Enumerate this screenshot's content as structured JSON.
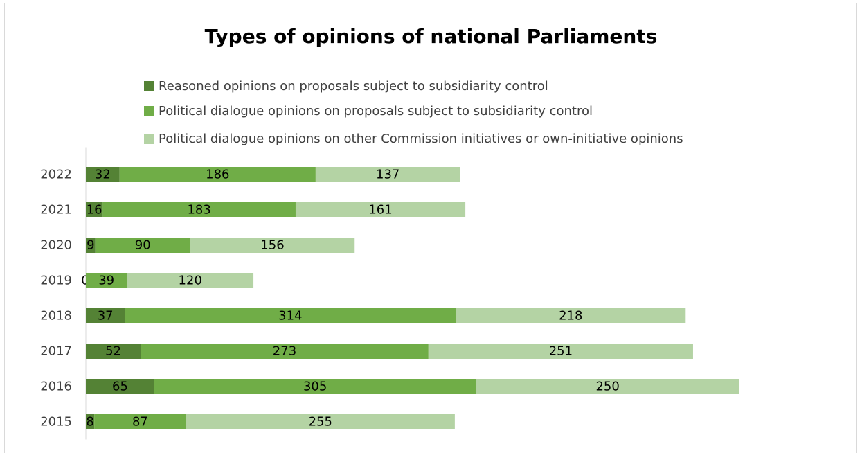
{
  "chart_data": {
    "type": "bar",
    "orientation": "horizontal",
    "stacked": true,
    "title": "Types of opinions of national Parliaments",
    "categories": [
      "2022",
      "2021",
      "2020",
      "2019",
      "2018",
      "2017",
      "2016",
      "2015"
    ],
    "series": [
      {
        "name": "Reasoned opinions on proposals subject to subsidiarity control",
        "color": "#548235",
        "values": [
          32,
          16,
          9,
          0,
          37,
          52,
          65,
          8
        ]
      },
      {
        "name": "Political dialogue opinions on proposals subject to subsidiarity control",
        "color": "#70ad47",
        "values": [
          186,
          183,
          90,
          39,
          314,
          273,
          305,
          87
        ]
      },
      {
        "name": "Political dialogue opinions on other Commission initiatives or own-initiative opinions",
        "color": "#b4d3a4",
        "values": [
          137,
          161,
          156,
          120,
          218,
          251,
          250,
          255
        ]
      }
    ],
    "data_labels": true,
    "legend_position": "top",
    "grid": false
  }
}
